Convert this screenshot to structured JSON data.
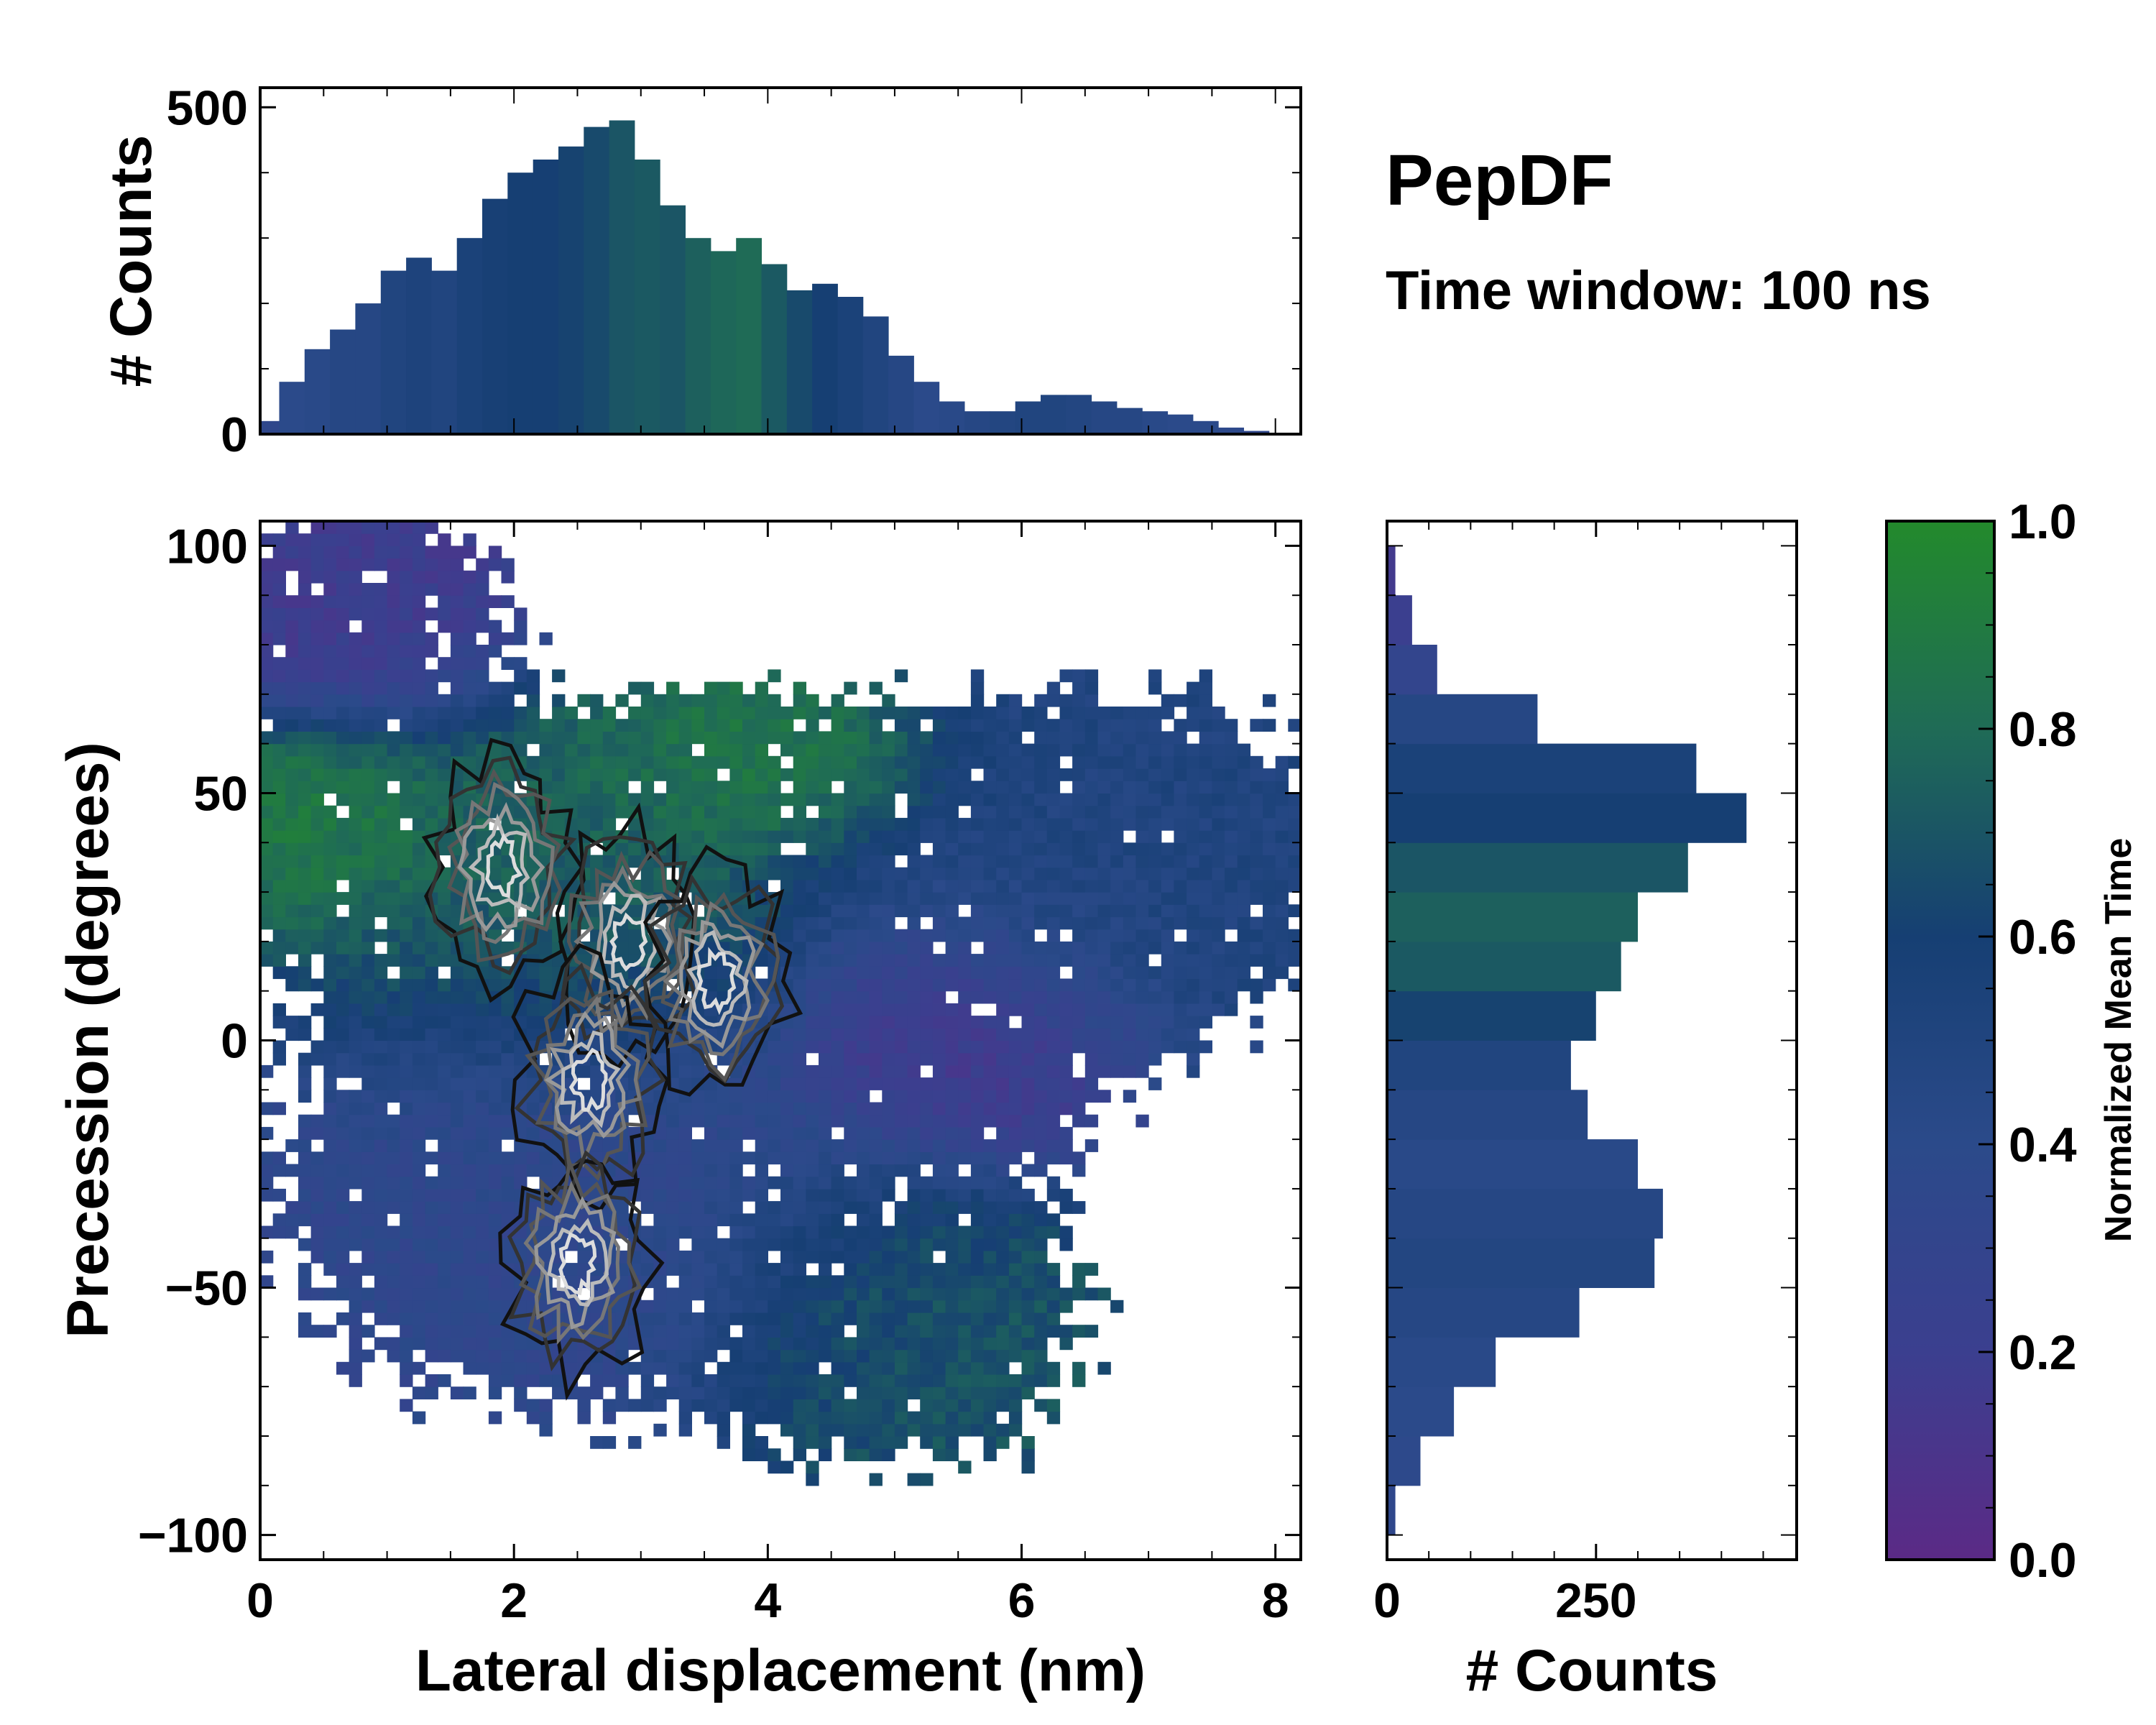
{
  "chart_data": [
    {
      "id": "main",
      "type": "heatmap",
      "xlabel": "Lateral displacement (nm)",
      "ylabel": "Precession (degrees)",
      "xlim": [
        0,
        8.2
      ],
      "ylim": [
        -105,
        105
      ],
      "xticks": [
        0,
        2,
        4,
        6,
        8
      ],
      "xtick_labels": [
        "0",
        "2",
        "4",
        "6",
        "8"
      ],
      "yticks": [
        -100,
        -50,
        0,
        50,
        100
      ],
      "ytick_labels": [
        "−100",
        "−50",
        "0",
        "50",
        "100"
      ],
      "color_label": "Normalized Mean Time",
      "color_range": [
        0.0,
        1.0
      ],
      "regions": [
        {
          "x_center": 0.8,
          "y_center": 85,
          "x_spread": 0.9,
          "y_spread": 18,
          "mean_time": 0.18
        },
        {
          "x_center": 0.5,
          "y_center": 45,
          "x_spread": 0.7,
          "y_spread": 15,
          "mean_time": 0.9
        },
        {
          "x_center": 2.2,
          "y_center": 30,
          "x_spread": 1.6,
          "y_spread": 30,
          "mean_time": 0.75
        },
        {
          "x_center": 4.0,
          "y_center": 55,
          "x_spread": 1.0,
          "y_spread": 12,
          "mean_time": 0.88
        },
        {
          "x_center": 6.5,
          "y_center": 35,
          "x_spread": 1.6,
          "y_spread": 30,
          "mean_time": 0.5
        },
        {
          "x_center": 2.5,
          "y_center": -30,
          "x_spread": 2.0,
          "y_spread": 35,
          "mean_time": 0.35
        },
        {
          "x_center": 5.0,
          "y_center": -55,
          "x_spread": 1.2,
          "y_spread": 25,
          "mean_time": 0.7
        },
        {
          "x_center": 5.5,
          "y_center": 0,
          "x_spread": 1.0,
          "y_spread": 20,
          "mean_time": 0.12
        }
      ],
      "density_peaks": [
        {
          "x": 1.9,
          "y": 35
        },
        {
          "x": 2.9,
          "y": 20
        },
        {
          "x": 2.6,
          "y": -8
        },
        {
          "x": 2.5,
          "y": -45
        },
        {
          "x": 3.6,
          "y": 12
        }
      ]
    },
    {
      "id": "top_marginal",
      "type": "bar",
      "ylabel": "# Counts",
      "xlim": [
        0,
        8.2
      ],
      "ylim": [
        0,
        530
      ],
      "yticks": [
        0,
        500
      ],
      "ytick_labels": [
        "0",
        "500"
      ],
      "x": [
        0.05,
        0.25,
        0.45,
        0.65,
        0.85,
        1.05,
        1.25,
        1.45,
        1.65,
        1.85,
        2.05,
        2.25,
        2.45,
        2.65,
        2.85,
        3.05,
        3.25,
        3.45,
        3.65,
        3.85,
        4.05,
        4.25,
        4.45,
        4.65,
        4.85,
        5.05,
        5.25,
        5.45,
        5.65,
        5.85,
        6.05,
        6.25,
        6.45,
        6.65,
        6.85,
        7.05,
        7.25,
        7.45,
        7.65,
        7.85,
        8.05
      ],
      "values": [
        20,
        80,
        130,
        160,
        200,
        250,
        270,
        250,
        300,
        360,
        400,
        420,
        440,
        470,
        480,
        420,
        350,
        300,
        280,
        300,
        260,
        220,
        230,
        210,
        180,
        120,
        80,
        50,
        35,
        35,
        50,
        60,
        60,
        50,
        40,
        35,
        30,
        20,
        10,
        5,
        2
      ],
      "mean_time": [
        0.35,
        0.4,
        0.42,
        0.45,
        0.45,
        0.5,
        0.52,
        0.5,
        0.55,
        0.58,
        0.6,
        0.6,
        0.62,
        0.65,
        0.7,
        0.72,
        0.7,
        0.75,
        0.78,
        0.8,
        0.72,
        0.65,
        0.6,
        0.55,
        0.5,
        0.45,
        0.4,
        0.42,
        0.45,
        0.48,
        0.5,
        0.5,
        0.48,
        0.45,
        0.45,
        0.42,
        0.4,
        0.4,
        0.38,
        0.35,
        0.35
      ]
    },
    {
      "id": "right_marginal",
      "type": "bar",
      "orientation": "horizontal",
      "xlabel": "# Counts",
      "xlim": [
        0,
        490
      ],
      "ylim": [
        -105,
        105
      ],
      "xticks": [
        0,
        250
      ],
      "xtick_labels": [
        "0",
        "250"
      ],
      "y": [
        -95,
        -85,
        -75,
        -65,
        -55,
        -45,
        -35,
        -25,
        -15,
        -5,
        5,
        15,
        25,
        35,
        45,
        55,
        65,
        75,
        85,
        95
      ],
      "values": [
        10,
        40,
        80,
        130,
        230,
        320,
        330,
        300,
        240,
        220,
        250,
        280,
        300,
        360,
        430,
        370,
        180,
        60,
        30,
        10
      ],
      "mean_time": [
        0.35,
        0.38,
        0.4,
        0.42,
        0.45,
        0.48,
        0.45,
        0.42,
        0.45,
        0.5,
        0.62,
        0.72,
        0.75,
        0.7,
        0.6,
        0.55,
        0.45,
        0.3,
        0.2,
        0.15
      ]
    },
    {
      "id": "colorbar",
      "type": "colorbar",
      "label": "Normalized Mean Time",
      "range": [
        0.0,
        1.0
      ],
      "ticks": [
        0.0,
        0.2,
        0.4,
        0.6,
        0.8,
        1.0
      ],
      "tick_labels": [
        "0.0",
        "0.2",
        "0.4",
        "0.6",
        "0.8",
        "1.0"
      ],
      "colors": [
        "#5b2a86",
        "#3b3f8f",
        "#2b4a8a",
        "#163f73",
        "#1f6b56",
        "#238a2c"
      ]
    }
  ],
  "annotations": {
    "title": "PepDF",
    "subtitle": "Time window: 100 ns"
  }
}
